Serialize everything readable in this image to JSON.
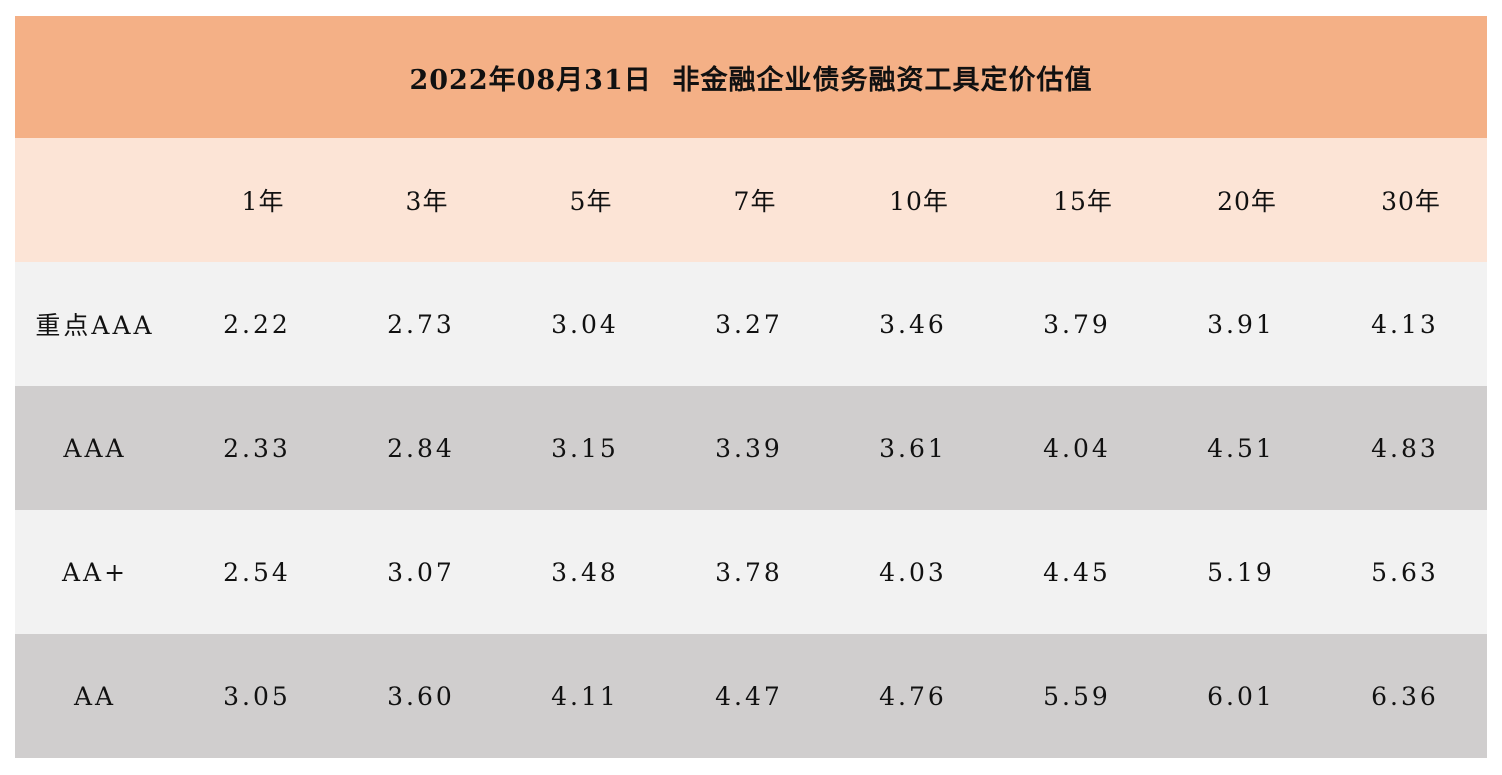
{
  "title": "2022年08月31日  非金融企业债务融资工具定价估值",
  "columns": [
    "1年",
    "3年",
    "5年",
    "7年",
    "10年",
    "15年",
    "20年",
    "30年"
  ],
  "rows": [
    {
      "label": "重点AAA",
      "values": [
        "2.22",
        "2.73",
        "3.04",
        "3.27",
        "3.46",
        "3.79",
        "3.91",
        "4.13"
      ]
    },
    {
      "label": "AAA",
      "values": [
        "2.33",
        "2.84",
        "3.15",
        "3.39",
        "3.61",
        "4.04",
        "4.51",
        "4.83"
      ]
    },
    {
      "label": "AA+",
      "values": [
        "2.54",
        "3.07",
        "3.48",
        "3.78",
        "4.03",
        "4.45",
        "5.19",
        "5.63"
      ]
    },
    {
      "label": "AA",
      "values": [
        "3.05",
        "3.60",
        "4.11",
        "4.47",
        "4.76",
        "5.59",
        "6.01",
        "6.36"
      ]
    }
  ],
  "colors": {
    "title_bg": "#f4b086",
    "header_bg": "#fce4d6",
    "row_light": "#f2f2f2",
    "row_dark": "#d0cece"
  }
}
